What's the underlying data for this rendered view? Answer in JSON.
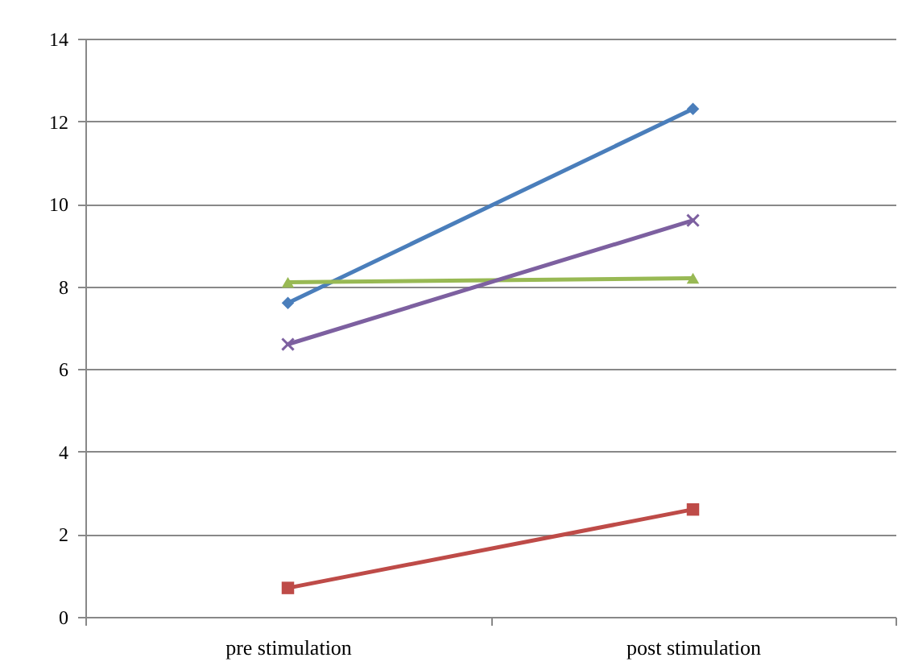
{
  "chart_data": {
    "type": "line",
    "categories": [
      "pre stimulation",
      "post stimulation"
    ],
    "series": [
      {
        "color": "#4a7ebb",
        "marker": "diamond",
        "values": [
          7.6,
          12.3
        ]
      },
      {
        "color": "#be4b48",
        "marker": "square",
        "values": [
          0.7,
          2.6
        ]
      },
      {
        "color": "#98b954",
        "marker": "triangle",
        "values": [
          8.1,
          8.2
        ]
      },
      {
        "color": "#7d60a0",
        "marker": "cross",
        "values": [
          6.6,
          9.6
        ]
      }
    ],
    "ylim": [
      0,
      14
    ],
    "yticks": [
      0,
      2,
      4,
      6,
      8,
      10,
      12,
      14
    ],
    "grid": "y"
  }
}
